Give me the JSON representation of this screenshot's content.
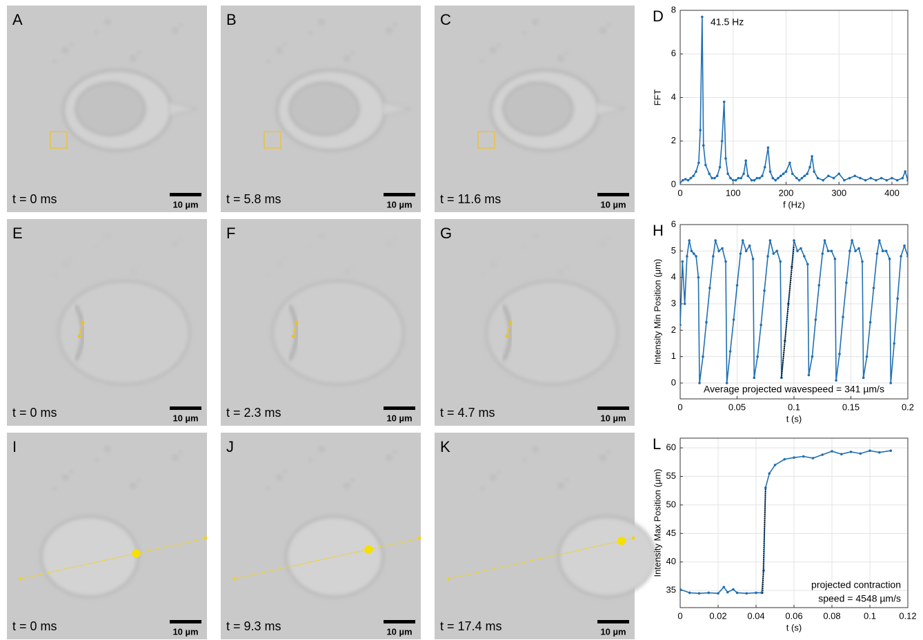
{
  "panels": [
    {
      "letter": "A",
      "time": "t = 0 ms",
      "scale": "10 µm"
    },
    {
      "letter": "B",
      "time": "t = 5.8 ms",
      "scale": "10 µm"
    },
    {
      "letter": "C",
      "time": "t = 11.6 ms",
      "scale": "10 µm"
    },
    {
      "letter": "E",
      "time": "t = 0 ms",
      "scale": "10 µm"
    },
    {
      "letter": "F",
      "time": "t = 2.3 ms",
      "scale": "10 µm"
    },
    {
      "letter": "G",
      "time": "t = 4.7 ms",
      "scale": "10 µm"
    },
    {
      "letter": "I",
      "time": "t = 0 ms",
      "scale": "10 µm"
    },
    {
      "letter": "J",
      "time": "t = 9.3 ms",
      "scale": "10 µm"
    },
    {
      "letter": "K",
      "time": "t = 17.4 ms",
      "scale": "10 µm"
    }
  ],
  "chart_data": [
    {
      "type": "line",
      "panel_label": "D",
      "xlabel": "f (Hz)",
      "ylabel": "FFT",
      "annotation": [
        "41.5 Hz"
      ],
      "grid": true,
      "xlim": [
        0,
        430
      ],
      "ylim": [
        0,
        8
      ],
      "xticks": [
        0,
        100,
        200,
        300,
        400
      ],
      "yticks": [
        0,
        2,
        4,
        6,
        8
      ],
      "x": [
        0,
        5,
        10,
        15,
        20,
        25,
        30,
        35,
        38,
        41.5,
        44,
        48,
        55,
        60,
        65,
        70,
        75,
        79,
        83,
        86,
        90,
        95,
        100,
        105,
        110,
        115,
        120,
        124,
        128,
        135,
        140,
        145,
        150,
        155,
        160,
        166,
        170,
        175,
        180,
        185,
        190,
        195,
        200,
        207,
        212,
        220,
        225,
        230,
        235,
        240,
        245,
        249,
        253,
        260,
        270,
        280,
        290,
        300,
        310,
        320,
        330,
        340,
        350,
        360,
        370,
        380,
        390,
        400,
        410,
        420,
        425,
        430
      ],
      "series": [
        {
          "color": "#1f6fb2",
          "values": [
            0.1,
            0.2,
            0.25,
            0.2,
            0.3,
            0.4,
            0.6,
            1.0,
            2.5,
            7.7,
            1.8,
            0.9,
            0.5,
            0.3,
            0.3,
            0.4,
            0.8,
            2.0,
            3.8,
            1.2,
            0.5,
            0.3,
            0.2,
            0.2,
            0.3,
            0.3,
            0.5,
            1.1,
            0.4,
            0.2,
            0.2,
            0.3,
            0.3,
            0.4,
            0.8,
            1.7,
            0.6,
            0.3,
            0.2,
            0.3,
            0.4,
            0.5,
            0.6,
            1.0,
            0.5,
            0.3,
            0.2,
            0.3,
            0.4,
            0.5,
            0.8,
            1.3,
            0.6,
            0.3,
            0.2,
            0.4,
            0.3,
            0.5,
            0.2,
            0.3,
            0.4,
            0.3,
            0.2,
            0.3,
            0.2,
            0.3,
            0.2,
            0.3,
            0.2,
            0.3,
            0.6,
            0.2
          ]
        }
      ]
    },
    {
      "type": "line",
      "panel_label": "H",
      "xlabel": "t (s)",
      "ylabel": "Intensity Min Position (μm)",
      "annotation": [
        "Average projected wavespeed = 341 µm/s"
      ],
      "grid": true,
      "xlim": [
        0,
        0.2
      ],
      "ylim": [
        -0.6,
        6
      ],
      "xticks": [
        0,
        0.05,
        0.1,
        0.15,
        0.2
      ],
      "yticks": [
        0,
        1,
        2,
        3,
        4,
        5,
        6
      ],
      "x": [
        0,
        0.002,
        0.004,
        0.006,
        0.008,
        0.01,
        0.012,
        0.014,
        0.016,
        0.017,
        0.02,
        0.023,
        0.026,
        0.029,
        0.031,
        0.034,
        0.037,
        0.04,
        0.041,
        0.044,
        0.047,
        0.05,
        0.053,
        0.055,
        0.058,
        0.061,
        0.064,
        0.065,
        0.068,
        0.071,
        0.074,
        0.077,
        0.079,
        0.082,
        0.085,
        0.088,
        0.089,
        0.092,
        0.095,
        0.098,
        0.1,
        0.103,
        0.106,
        0.109,
        0.112,
        0.113,
        0.116,
        0.119,
        0.122,
        0.125,
        0.127,
        0.13,
        0.133,
        0.136,
        0.137,
        0.14,
        0.143,
        0.146,
        0.149,
        0.151,
        0.154,
        0.157,
        0.16,
        0.161,
        0.164,
        0.167,
        0.17,
        0.173,
        0.175,
        0.178,
        0.181,
        0.184,
        0.185,
        0.188,
        0.191,
        0.194,
        0.197,
        0.2
      ],
      "series": [
        {
          "color": "#1f6fb2",
          "values": [
            2.2,
            4.6,
            3.0,
            4.8,
            5.4,
            5.0,
            4.9,
            4.8,
            4.0,
            0,
            1.0,
            2.3,
            3.6,
            4.8,
            5.4,
            5.0,
            5.1,
            4.6,
            0,
            1.2,
            2.4,
            3.7,
            4.9,
            5.4,
            5.0,
            5.2,
            4.7,
            0.2,
            1.0,
            2.2,
            3.5,
            4.8,
            5.4,
            4.9,
            5.0,
            4.6,
            0.2,
            1.6,
            3.0,
            4.4,
            5.4,
            5.0,
            5.1,
            4.8,
            4.5,
            0.3,
            1.0,
            2.4,
            3.7,
            4.9,
            5.4,
            5.0,
            5.0,
            4.7,
            0.1,
            1.1,
            2.5,
            3.8,
            5.0,
            5.4,
            5.0,
            5.1,
            4.6,
            0.2,
            1.0,
            2.3,
            3.6,
            4.9,
            5.4,
            5.0,
            5.0,
            4.7,
            0,
            1.5,
            3.2,
            4.8,
            5.2,
            4.8
          ]
        }
      ],
      "fit": {
        "color": "#000000",
        "x": [
          0.089,
          0.1
        ],
        "values": [
          0.2,
          5.2
        ]
      }
    },
    {
      "type": "line",
      "panel_label": "L",
      "xlabel": "t (s)",
      "ylabel": "Intensity Max Position (μm)",
      "annotation": [
        "projected contraction",
        "speed = 4548 µm/s"
      ],
      "grid": true,
      "xlim": [
        0,
        0.12
      ],
      "ylim": [
        32,
        61.7
      ],
      "xticks": [
        0,
        0.02,
        0.04,
        0.06,
        0.08,
        0.1,
        0.12
      ],
      "yticks": [
        35,
        40,
        45,
        50,
        55,
        60
      ],
      "x": [
        0,
        0.005,
        0.01,
        0.015,
        0.02,
        0.023,
        0.025,
        0.028,
        0.03,
        0.035,
        0.04,
        0.043,
        0.044,
        0.045,
        0.047,
        0.05,
        0.055,
        0.06,
        0.065,
        0.07,
        0.075,
        0.08,
        0.085,
        0.09,
        0.095,
        0.1,
        0.105,
        0.111
      ],
      "series": [
        {
          "color": "#1f6fb2",
          "values": [
            35.2,
            34.6,
            34.5,
            34.6,
            34.5,
            35.6,
            34.7,
            35.2,
            34.6,
            34.5,
            34.6,
            34.6,
            38.5,
            53,
            55.5,
            57,
            58,
            58.3,
            58.5,
            58.2,
            58.8,
            59.4,
            58.9,
            59.3,
            59.0,
            59.5,
            59.2,
            59.5
          ]
        }
      ],
      "fit": {
        "color": "#000000",
        "x": [
          0.0435,
          0.045
        ],
        "values": [
          34.5,
          53
        ]
      }
    }
  ]
}
